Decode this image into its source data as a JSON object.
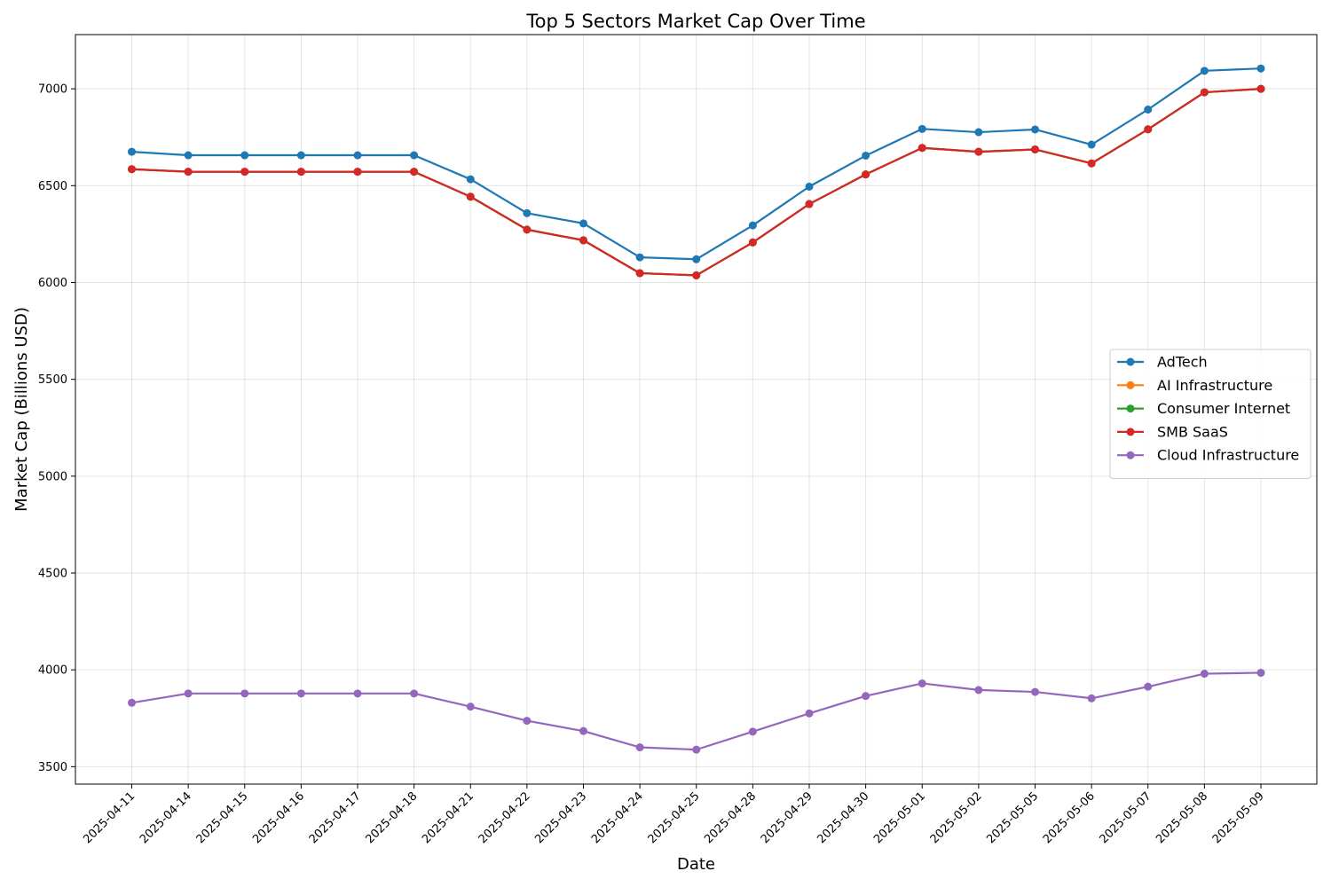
{
  "chart_data": {
    "type": "line",
    "title": "Top 5 Sectors Market Cap Over Time",
    "xlabel": "Date",
    "ylabel": "Market Cap (Billions USD)",
    "x": [
      "2025-04-11",
      "2025-04-14",
      "2025-04-15",
      "2025-04-16",
      "2025-04-17",
      "2025-04-18",
      "2025-04-21",
      "2025-04-22",
      "2025-04-23",
      "2025-04-24",
      "2025-04-25",
      "2025-04-28",
      "2025-04-29",
      "2025-04-30",
      "2025-05-01",
      "2025-05-02",
      "2025-05-05",
      "2025-05-06",
      "2025-05-07",
      "2025-05-08",
      "2025-05-09"
    ],
    "ylim": [
      3410,
      7280
    ],
    "yticks": [
      3500,
      4000,
      4500,
      5000,
      5500,
      6000,
      6500,
      7000
    ],
    "grid": true,
    "legend_position": "center-right",
    "series": [
      {
        "name": "AdTech",
        "color": "#1f77b4",
        "values": [
          6675,
          6657,
          6657,
          6657,
          6657,
          6657,
          6533,
          6358,
          6305,
          6130,
          6120,
          6295,
          6495,
          6655,
          6793,
          6776,
          6790,
          6712,
          6893,
          7093,
          7105
        ]
      },
      {
        "name": "AI Infrastructure",
        "color": "#ff7f0e",
        "values": [
          6585,
          6572,
          6572,
          6572,
          6572,
          6572,
          6443,
          6273,
          6218,
          6048,
          6037,
          6207,
          6405,
          6558,
          6695,
          6675,
          6687,
          6615,
          6791,
          6982,
          7000
        ]
      },
      {
        "name": "Consumer Internet",
        "color": "#2ca02c",
        "values": [
          6585,
          6572,
          6572,
          6572,
          6572,
          6572,
          6443,
          6273,
          6218,
          6048,
          6037,
          6207,
          6405,
          6558,
          6695,
          6675,
          6687,
          6615,
          6791,
          6982,
          7000
        ]
      },
      {
        "name": "SMB SaaS",
        "color": "#d62728",
        "values": [
          6585,
          6572,
          6572,
          6572,
          6572,
          6572,
          6443,
          6273,
          6218,
          6048,
          6037,
          6207,
          6405,
          6558,
          6695,
          6675,
          6687,
          6615,
          6791,
          6982,
          7000
        ]
      },
      {
        "name": "Cloud Infrastructure",
        "color": "#9467bd",
        "values": [
          3830,
          3878,
          3878,
          3878,
          3878,
          3878,
          3810,
          3737,
          3684,
          3600,
          3588,
          3681,
          3775,
          3865,
          3930,
          3896,
          3886,
          3853,
          3913,
          3980,
          3985
        ]
      }
    ]
  }
}
